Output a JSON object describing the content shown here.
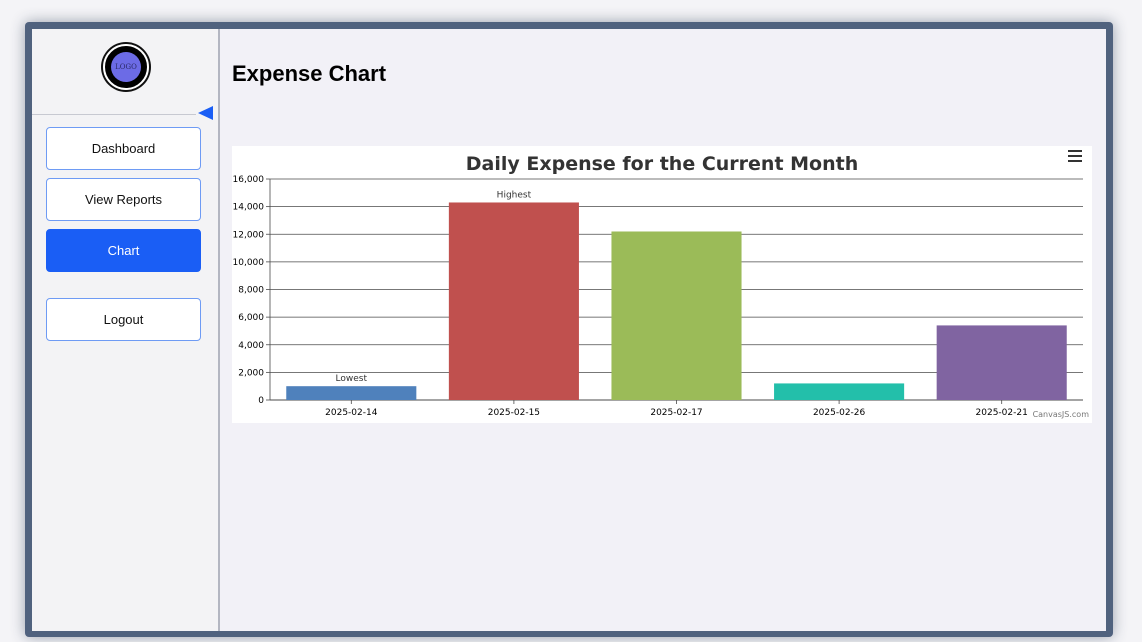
{
  "sidebar": {
    "logo_text": "LOGO",
    "items": [
      {
        "label": "Dashboard",
        "active": false
      },
      {
        "label": "View Reports",
        "active": false
      },
      {
        "label": "Chart",
        "active": true
      },
      {
        "label": "Logout",
        "active": false
      }
    ],
    "collapse_icon": "collapse-left-arrow-icon"
  },
  "main": {
    "title": "Expense Chart"
  },
  "chart_data": {
    "type": "bar",
    "title": "Daily Expense for the Current Month",
    "categories": [
      "2025-02-14",
      "2025-02-15",
      "2025-02-17",
      "2025-02-26",
      "2025-02-21"
    ],
    "values": [
      1000,
      14300,
      12200,
      1200,
      5400
    ],
    "colors": [
      "#4f81bc",
      "#c0504e",
      "#9bbb58",
      "#23bfaa",
      "#8064a1"
    ],
    "annotations": [
      {
        "category": "2025-02-14",
        "text": "Lowest"
      },
      {
        "category": "2025-02-15",
        "text": "Highest"
      }
    ],
    "y_ticks": [
      "0",
      "2,000",
      "4,000",
      "6,000",
      "8,000",
      "10,000",
      "12,000",
      "14,000",
      "16,000"
    ],
    "ylim": [
      0,
      16000
    ],
    "grid": true,
    "credit": "CanvasJS.com"
  }
}
